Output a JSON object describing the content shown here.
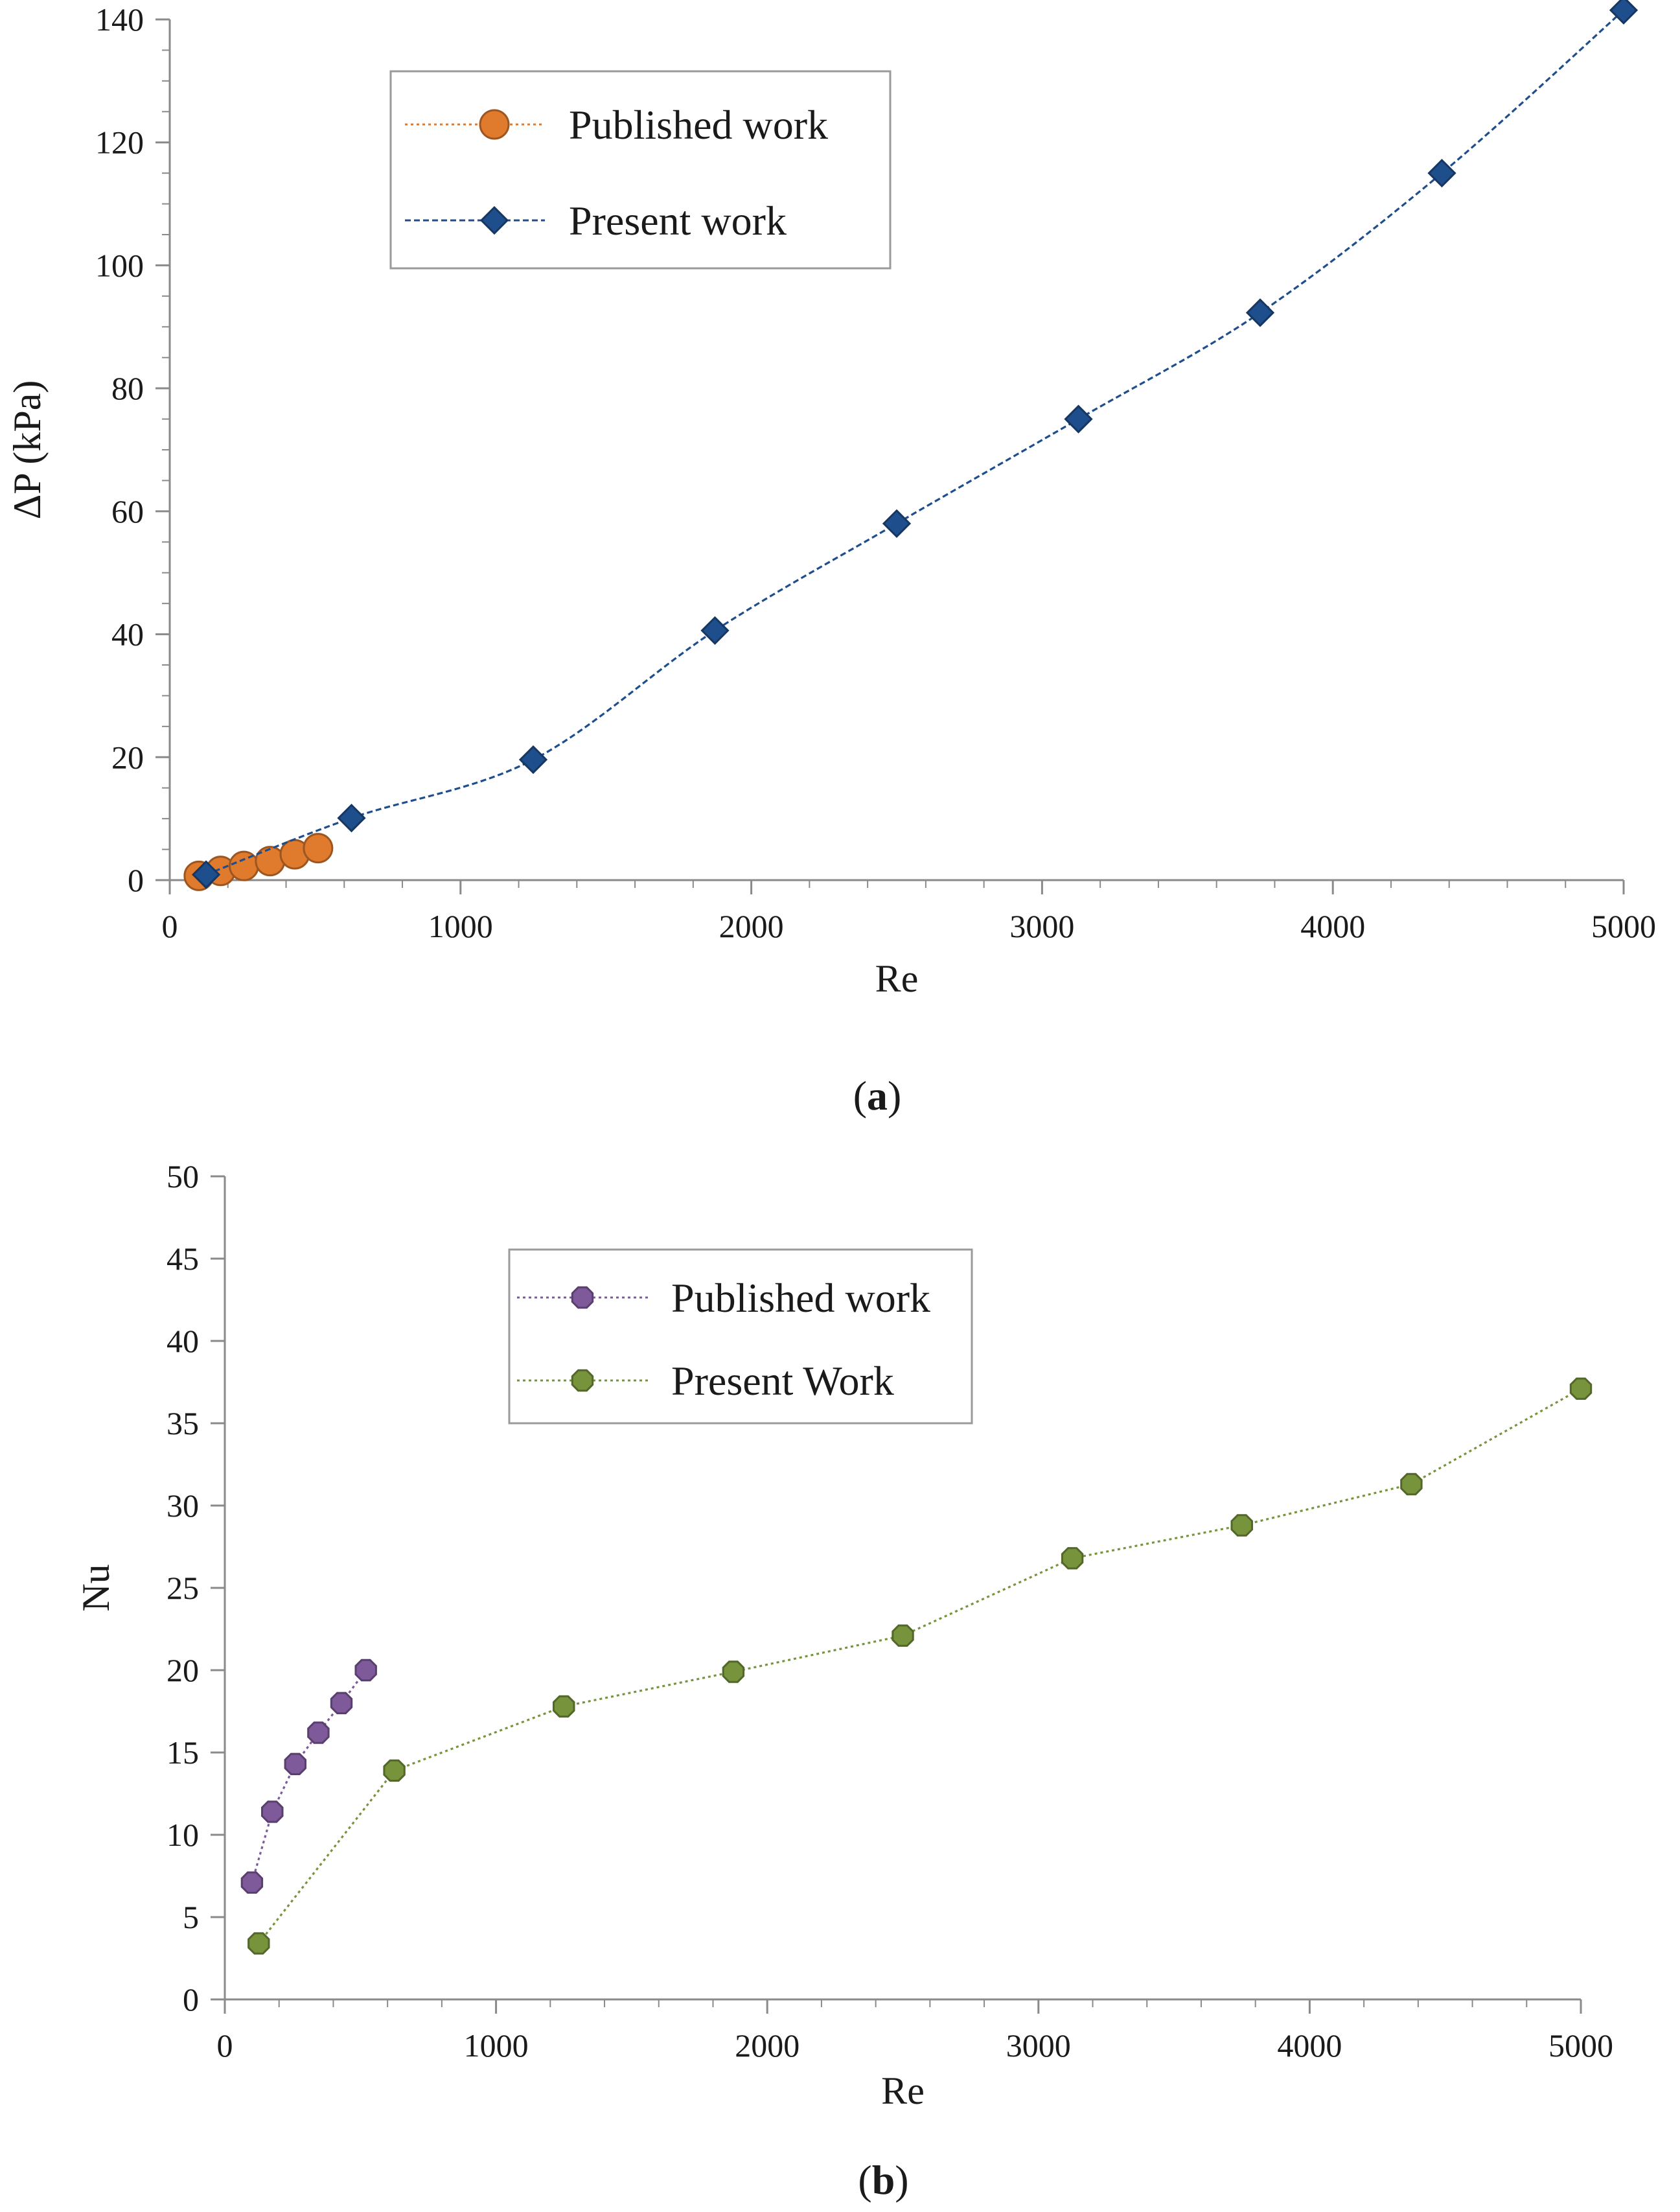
{
  "chart_data": [
    {
      "type": "line",
      "caption_open": "(",
      "caption_label": "a",
      "caption_close": ")",
      "xlabel": "Re",
      "ylabel": "ΔP (kPa)",
      "xlim": [
        0,
        5000
      ],
      "ylim": [
        0,
        140
      ],
      "xticks": [
        "0",
        "1000",
        "2000",
        "3000",
        "4000",
        "5000"
      ],
      "yticks": [
        "0",
        "20",
        "40",
        "60",
        "80",
        "100",
        "120",
        "140"
      ],
      "legend_position": "top-left",
      "series": [
        {
          "name": "Published work",
          "color": "#E07B2E",
          "marker": "circle",
          "line": "dotted",
          "x": [
            100,
            175,
            255,
            345,
            430,
            510
          ],
          "y": [
            0.7,
            1.5,
            2.3,
            3.1,
            4.2,
            5.2
          ]
        },
        {
          "name": "Present work",
          "color": "#1F4E8C",
          "marker": "diamond",
          "line": "dashed",
          "x": [
            125,
            625,
            1250,
            1875,
            2500,
            3125,
            3750,
            4375,
            5000
          ],
          "y": [
            0.9,
            10.1,
            19.6,
            40.6,
            58.0,
            75.0,
            92.3,
            115.0,
            141.5
          ]
        }
      ]
    },
    {
      "type": "line",
      "caption_open": "(",
      "caption_label": "b",
      "caption_close": ")",
      "xlabel": "Re",
      "ylabel": "Nu",
      "xlim": [
        0,
        5000
      ],
      "ylim": [
        0,
        50
      ],
      "xticks": [
        "0",
        "1000",
        "2000",
        "3000",
        "4000",
        "5000"
      ],
      "yticks": [
        "0",
        "5",
        "10",
        "15",
        "20",
        "25",
        "30",
        "35",
        "40",
        "45",
        "50"
      ],
      "legend_position": "top-left",
      "series": [
        {
          "name": "Published work",
          "color": "#7E5A9B",
          "marker": "octagon",
          "line": "dotted",
          "x": [
            100,
            175,
            260,
            345,
            430,
            520
          ],
          "y": [
            7.1,
            11.4,
            14.3,
            16.2,
            18.0,
            20.0
          ]
        },
        {
          "name": "Present Work",
          "color": "#77933C",
          "marker": "octagon",
          "line": "dotted",
          "x": [
            125,
            625,
            1250,
            1875,
            2500,
            3125,
            3750,
            4375,
            5000
          ],
          "y": [
            3.4,
            13.9,
            17.8,
            19.9,
            22.1,
            26.8,
            28.8,
            31.3,
            37.1
          ]
        }
      ]
    }
  ]
}
